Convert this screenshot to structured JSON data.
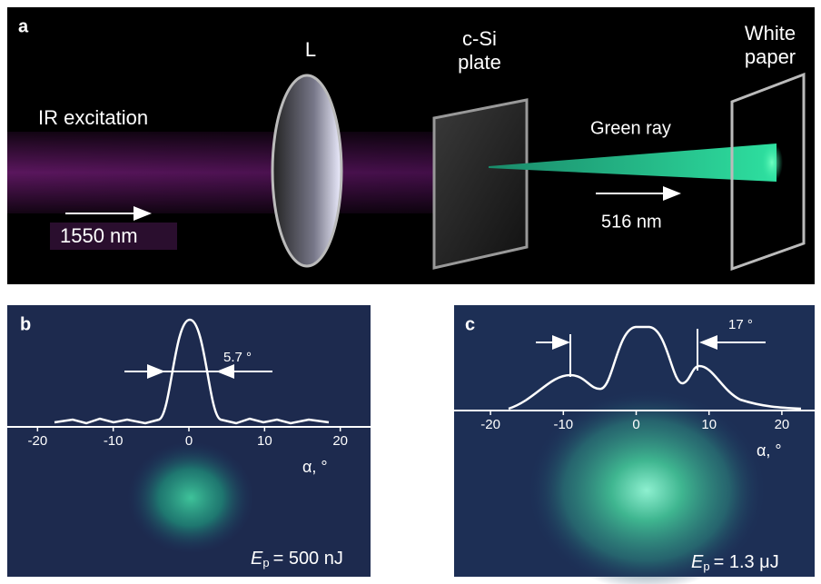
{
  "panels": {
    "a": {
      "label": "a",
      "lens": "L",
      "plate": [
        "c-Si",
        "plate"
      ],
      "screen": [
        "White",
        "paper"
      ],
      "beam_in": "IR excitation",
      "wavelength_in": "1550 nm",
      "beam_out": "Green ray",
      "wavelength_out": "516 nm"
    },
    "b": {
      "label": "b",
      "width_label": "5.7 °",
      "axis_label": "α, °",
      "energy": {
        "symbol": "E",
        "subscript": "p",
        "text": "= 500 nJ"
      },
      "xlim": [
        -24,
        24
      ],
      "xticks": [
        -20,
        -10,
        0,
        10,
        20
      ]
    },
    "c": {
      "label": "c",
      "width_label": "17 °",
      "axis_label": "α, °",
      "energy": {
        "symbol": "E",
        "subscript": "p",
        "text": "= 1.3 μJ"
      },
      "xlim": [
        -25,
        24.5
      ],
      "xticks": [
        -20,
        -10,
        0,
        10,
        20
      ]
    }
  }
}
